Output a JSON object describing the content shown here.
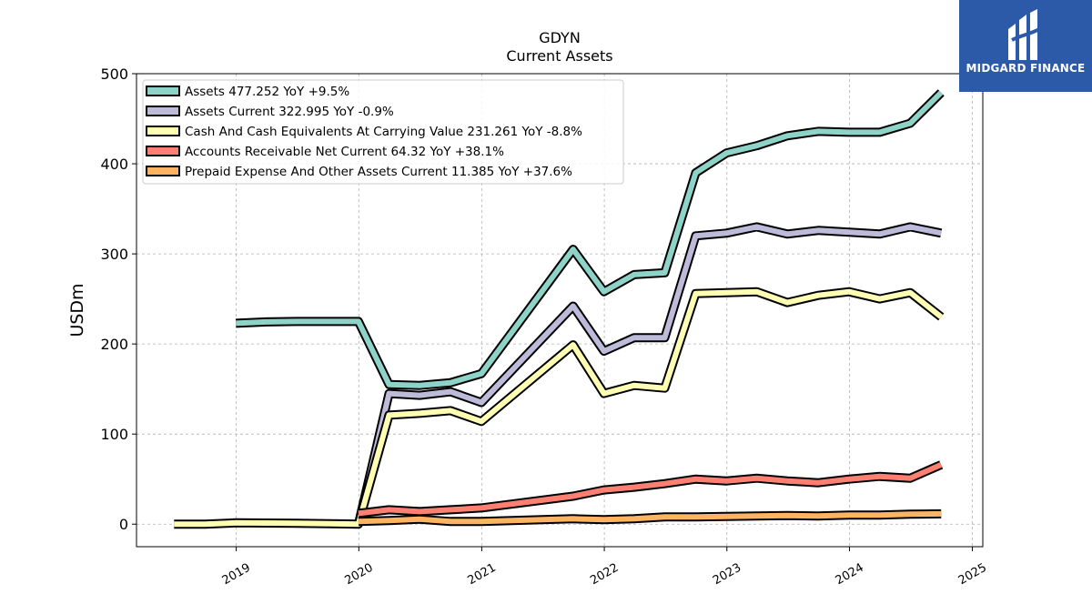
{
  "chart_data": {
    "type": "line",
    "title": "GDYN",
    "subtitle": "Current  Assets",
    "ylabel": "USDm",
    "ylim": [
      -25,
      500
    ],
    "xlim": [
      "2018-03-10",
      "2025-02-01"
    ],
    "yticks": [
      0,
      100,
      200,
      300,
      400,
      500
    ],
    "xticks": [
      "2019",
      "2020",
      "2021",
      "2022",
      "2023",
      "2024",
      "2025"
    ],
    "grid": true,
    "legend_position": "top-left",
    "series": [
      {
        "name": "Assets",
        "legend": "Assets  477.252 YoY +9.5%",
        "color": "#8dd3c7",
        "points": [
          [
            "2018-12-31",
            223.0
          ],
          [
            "2019-03-31",
            224.5
          ],
          [
            "2019-06-30",
            225.0
          ],
          [
            "2019-09-30",
            225.0
          ],
          [
            "2019-12-31",
            225.0
          ],
          [
            "2020-03-31",
            155.0
          ],
          [
            "2020-06-30",
            154.0
          ],
          [
            "2020-09-30",
            157.0
          ],
          [
            "2020-12-31",
            167.0
          ],
          [
            "2021-09-30",
            305.0
          ],
          [
            "2021-12-31",
            258.0
          ],
          [
            "2022-03-31",
            277.0
          ],
          [
            "2022-06-30",
            279.0
          ],
          [
            "2022-09-30",
            390.0
          ],
          [
            "2022-12-31",
            412.0
          ],
          [
            "2023-03-31",
            420.0
          ],
          [
            "2023-06-30",
            431.0
          ],
          [
            "2023-09-30",
            436.0
          ],
          [
            "2023-12-31",
            435.0
          ],
          [
            "2024-03-31",
            435.0
          ],
          [
            "2024-06-30",
            445.0
          ],
          [
            "2024-09-30",
            479.0
          ]
        ]
      },
      {
        "name": "Assets Current",
        "legend": "Assets Current  322.995 YoY -0.9%",
        "color": "#bebada",
        "points": [
          [
            "2019-12-31",
            0.0
          ],
          [
            "2020-03-31",
            145.0
          ],
          [
            "2020-06-30",
            143.0
          ],
          [
            "2020-09-30",
            147.0
          ],
          [
            "2020-12-31",
            135.0
          ],
          [
            "2021-09-30",
            242.0
          ],
          [
            "2021-12-31",
            192.0
          ],
          [
            "2022-03-31",
            207.0
          ],
          [
            "2022-06-30",
            207.0
          ],
          [
            "2022-09-30",
            320.0
          ],
          [
            "2022-12-31",
            323.0
          ],
          [
            "2023-03-31",
            330.0
          ],
          [
            "2023-06-30",
            322.0
          ],
          [
            "2023-09-30",
            326.0
          ],
          [
            "2023-12-31",
            324.0
          ],
          [
            "2024-03-31",
            322.0
          ],
          [
            "2024-06-30",
            330.0
          ],
          [
            "2024-09-30",
            323.0
          ]
        ]
      },
      {
        "name": "Cash And Cash Equivalents At Carrying Value",
        "legend": "Cash And Cash Equivalents At Carrying Value  231.261 YoY -8.8%",
        "color": "#ffffb3",
        "points": [
          [
            "2018-06-30",
            0.0
          ],
          [
            "2018-09-30",
            0.0
          ],
          [
            "2018-12-31",
            1.5
          ],
          [
            "2019-06-30",
            1.0
          ],
          [
            "2019-12-31",
            0.0
          ],
          [
            "2020-03-31",
            121.0
          ],
          [
            "2020-06-30",
            123.0
          ],
          [
            "2020-09-30",
            126.0
          ],
          [
            "2020-12-31",
            114.0
          ],
          [
            "2021-09-30",
            199.0
          ],
          [
            "2021-12-31",
            145.0
          ],
          [
            "2022-03-31",
            154.0
          ],
          [
            "2022-06-30",
            151.0
          ],
          [
            "2022-09-30",
            256.0
          ],
          [
            "2022-12-31",
            257.0
          ],
          [
            "2023-03-31",
            258.0
          ],
          [
            "2023-06-30",
            246.0
          ],
          [
            "2023-09-30",
            254.0
          ],
          [
            "2023-12-31",
            258.0
          ],
          [
            "2024-03-31",
            250.0
          ],
          [
            "2024-06-30",
            257.0
          ],
          [
            "2024-09-30",
            230.0
          ]
        ]
      },
      {
        "name": "Accounts Receivable Net Current",
        "legend": "Accounts Receivable Net Current  64.32 YoY +38.1%",
        "color": "#fb8072",
        "points": [
          [
            "2019-12-31",
            12.0
          ],
          [
            "2020-03-31",
            16.0
          ],
          [
            "2020-06-30",
            14.0
          ],
          [
            "2020-09-30",
            16.0
          ],
          [
            "2020-12-31",
            18.0
          ],
          [
            "2021-09-30",
            31.0
          ],
          [
            "2021-12-31",
            38.0
          ],
          [
            "2022-03-31",
            41.0
          ],
          [
            "2022-06-30",
            45.0
          ],
          [
            "2022-09-30",
            50.0
          ],
          [
            "2022-12-31",
            48.0
          ],
          [
            "2023-03-31",
            51.0
          ],
          [
            "2023-06-30",
            48.0
          ],
          [
            "2023-09-30",
            46.0
          ],
          [
            "2023-12-31",
            50.0
          ],
          [
            "2024-03-31",
            53.0
          ],
          [
            "2024-06-30",
            51.0
          ],
          [
            "2024-09-30",
            66.0
          ]
        ]
      },
      {
        "name": "Prepaid Expense And Other Assets Current",
        "legend": "Prepaid Expense And Other Assets Current  11.385 YoY +37.6%",
        "color": "#fdb462",
        "points": [
          [
            "2019-12-31",
            3.0
          ],
          [
            "2020-03-31",
            4.0
          ],
          [
            "2020-06-30",
            5.5
          ],
          [
            "2020-09-30",
            3.0
          ],
          [
            "2020-12-31",
            3.0
          ],
          [
            "2021-09-30",
            6.0
          ],
          [
            "2021-12-31",
            5.0
          ],
          [
            "2022-03-31",
            6.0
          ],
          [
            "2022-06-30",
            8.0
          ],
          [
            "2022-09-30",
            8.0
          ],
          [
            "2022-12-31",
            8.5
          ],
          [
            "2023-03-31",
            9.0
          ],
          [
            "2023-06-30",
            9.5
          ],
          [
            "2023-09-30",
            9.0
          ],
          [
            "2023-12-31",
            10.0
          ],
          [
            "2024-03-31",
            10.0
          ],
          [
            "2024-06-30",
            11.0
          ],
          [
            "2024-09-30",
            11.4
          ]
        ]
      }
    ]
  },
  "logo": {
    "text": "MIDGARD FINANCE"
  }
}
